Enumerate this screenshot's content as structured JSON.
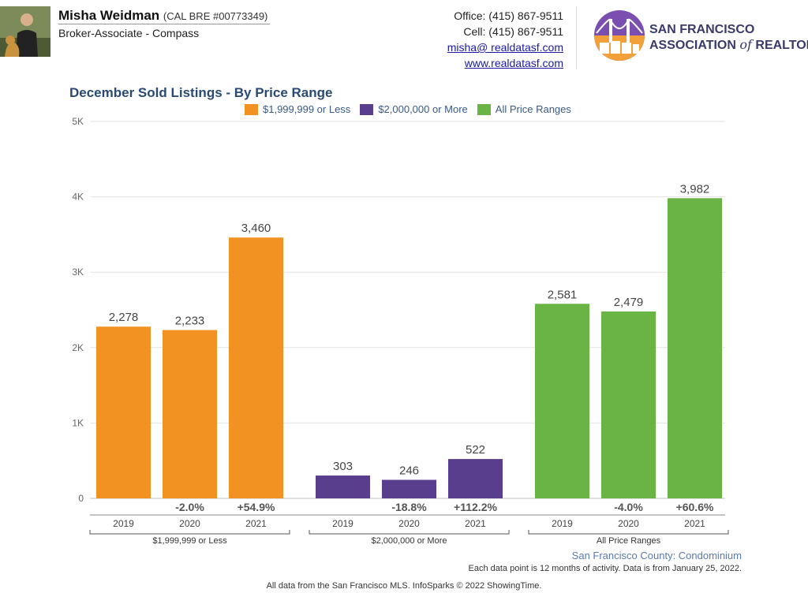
{
  "header": {
    "agent_name": "Misha Weidman",
    "agent_license": "(CAL BRE #00773349)",
    "agent_title": "Broker-Associate - Compass",
    "office_phone": "Office: (415) 867-9511",
    "cell_phone": "Cell: (415) 867-9511",
    "email": "misha@ realdatasf.com",
    "website": "www.realdatasf.com",
    "logo_line1": "SAN FRANCISCO",
    "logo_line2a": "ASSOCIATION ",
    "logo_line2b": "of",
    "logo_line2c": " REALTORS",
    "logo_reg": "®"
  },
  "colors": {
    "orange": "#f29222",
    "purple": "#5a3e8e",
    "green": "#6ab446",
    "title": "#2a4a74"
  },
  "chart_data": {
    "type": "bar",
    "title": "December Sold Listings - By Price Range",
    "legend": [
      "$1,999,999 or Less",
      "$2,000,000 or More",
      "All Price Ranges"
    ],
    "legend_position": "top",
    "ylim": [
      0,
      5000
    ],
    "yticks": [
      "0",
      "1K",
      "2K",
      "3K",
      "4K",
      "5K"
    ],
    "grid": true,
    "groups": [
      {
        "name": "$1,999,999 or Less",
        "color": "#f29222",
        "categories": [
          "2019",
          "2020",
          "2021"
        ],
        "values": [
          2278,
          2233,
          3460
        ],
        "value_labels": [
          "2,278",
          "2,233",
          "3,460"
        ],
        "changes": [
          "",
          "-2.0%",
          "+54.9%"
        ]
      },
      {
        "name": "$2,000,000 or More",
        "color": "#5a3e8e",
        "categories": [
          "2019",
          "2020",
          "2021"
        ],
        "values": [
          303,
          246,
          522
        ],
        "value_labels": [
          "303",
          "246",
          "522"
        ],
        "changes": [
          "",
          "-18.8%",
          "+112.2%"
        ]
      },
      {
        "name": "All Price Ranges",
        "color": "#6ab446",
        "categories": [
          "2019",
          "2020",
          "2021"
        ],
        "values": [
          2581,
          2479,
          3982
        ],
        "value_labels": [
          "2,581",
          "2,479",
          "3,982"
        ],
        "changes": [
          "",
          "-4.0%",
          "+60.6%"
        ]
      }
    ]
  },
  "footer": {
    "county": "San Francisco County: Condominium",
    "note": "Each data point is 12 months of activity. Data is from January 25, 2022.",
    "source": "All data from the San Francisco MLS. InfoSparks © 2022 ShowingTime."
  }
}
